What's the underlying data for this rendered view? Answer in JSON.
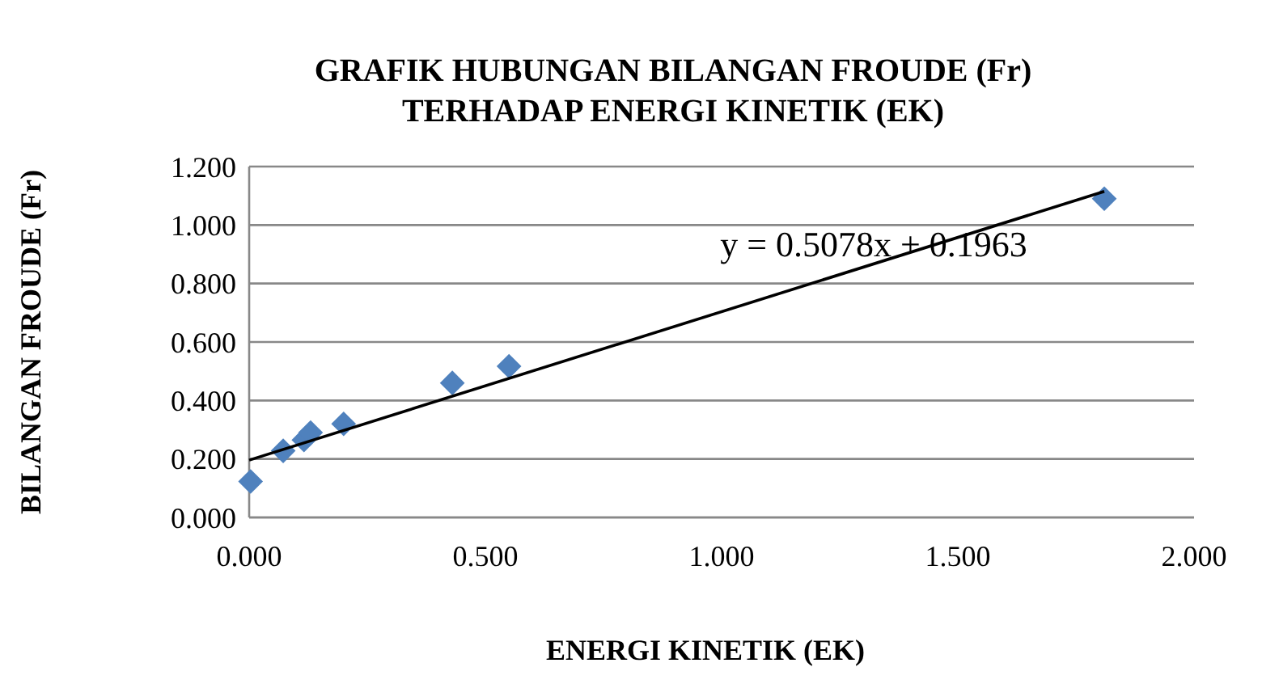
{
  "chart_data": {
    "type": "scatter",
    "title": "GRAFIK HUBUNGAN BILANGAN FROUDE (Fr)\nTERHADAP ENERGI KINETIK (EK)",
    "xlabel": "ENERGI KINETIK (EK)",
    "ylabel": "BILANGAN  FROUDE  (Fr)",
    "xlim": [
      0,
      2
    ],
    "xticks": [
      {
        "value": 0,
        "label": "0.000"
      },
      {
        "value": 0.5,
        "label": "0.500"
      },
      {
        "value": 1,
        "label": "1.000"
      },
      {
        "value": 1.5,
        "label": "1.500"
      },
      {
        "value": 2,
        "label": "2.000"
      }
    ],
    "ylim": [
      0,
      1.2
    ],
    "yticks": [
      {
        "value": 0,
        "label": "0.000"
      },
      {
        "value": 0.2,
        "label": "0.200"
      },
      {
        "value": 0.4,
        "label": "0.400"
      },
      {
        "value": 0.6,
        "label": "0.600"
      },
      {
        "value": 0.8,
        "label": "0.800"
      },
      {
        "value": 1,
        "label": "1.000"
      },
      {
        "value": 1.2,
        "label": "1.200"
      }
    ],
    "grid": "y",
    "series": [
      {
        "marker": "diamond",
        "color": "#4f81bd",
        "x": [
          0.003,
          0.072,
          0.116,
          0.13,
          0.2,
          0.43,
          0.55,
          1.81
        ],
        "values": [
          0.123,
          0.228,
          0.265,
          0.29,
          0.32,
          0.46,
          0.517,
          1.09
        ]
      },
      {
        "type": "line",
        "color": "#000000",
        "x": [
          0,
          1.81
        ],
        "values": [
          0.196,
          1.115
        ]
      }
    ],
    "annotations": [
      "y = 0.5078x + 0.1963"
    ]
  }
}
